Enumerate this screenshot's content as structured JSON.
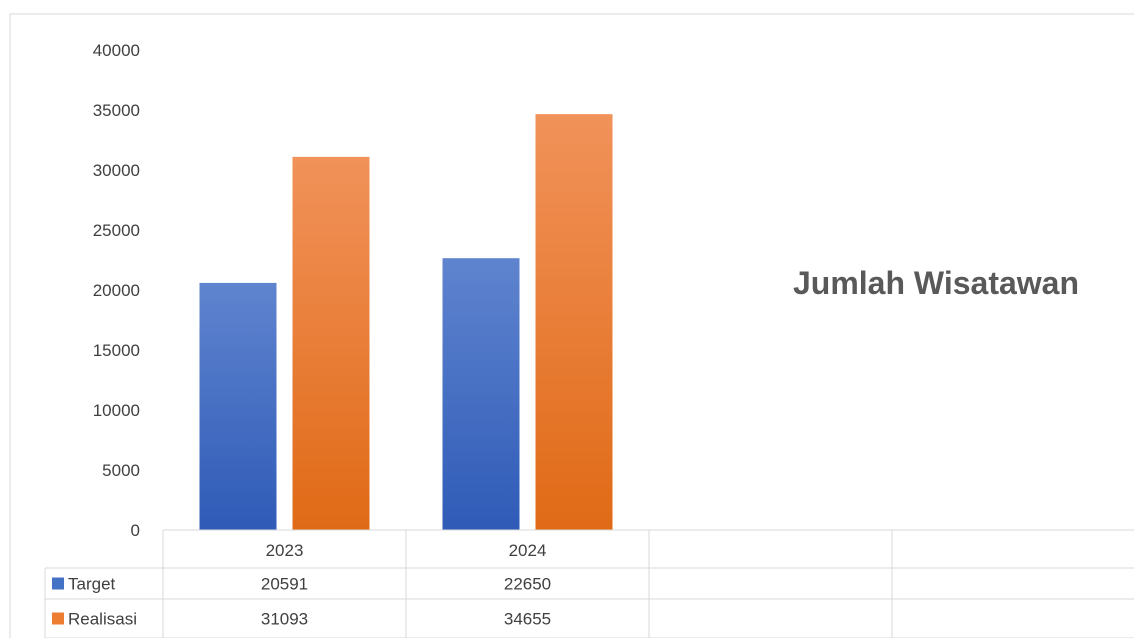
{
  "chart_data": {
    "type": "bar",
    "title": "Jumlah Wisatawan",
    "categories": [
      "2023",
      "2024"
    ],
    "series": [
      {
        "name": "Target",
        "values": [
          20591,
          22650
        ],
        "color": "#4472C4"
      },
      {
        "name": "Realisasi",
        "values": [
          31093,
          34655
        ],
        "color": "#ED7D31"
      }
    ],
    "ylim": [
      0,
      40000
    ],
    "yticks": [
      0,
      5000,
      10000,
      15000,
      20000,
      25000,
      30000,
      35000,
      40000
    ],
    "grid": false,
    "legend": "data-table"
  }
}
